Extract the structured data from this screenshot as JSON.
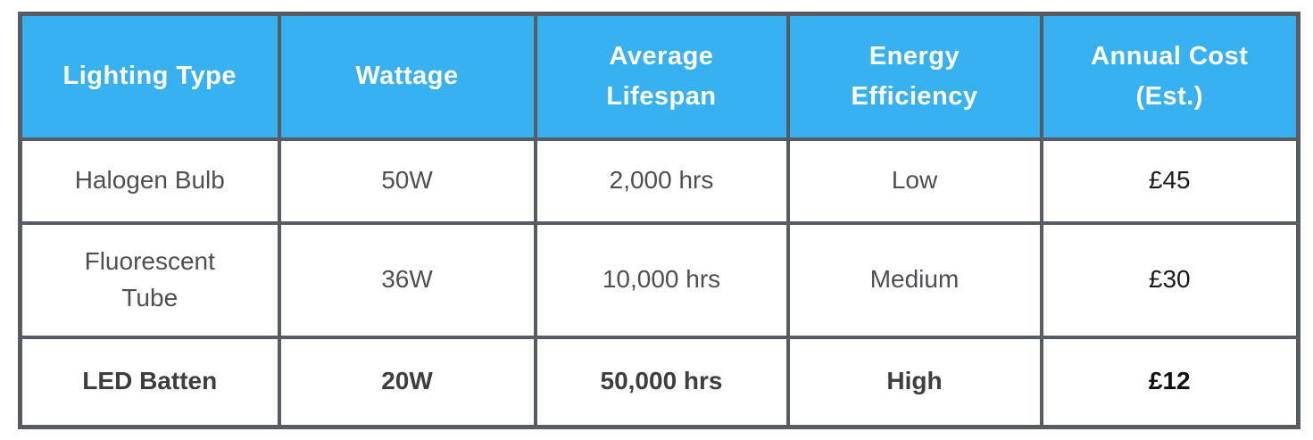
{
  "colors": {
    "header_background": "#38b1f1",
    "header_text": "#ffffff",
    "border": "#585b61",
    "body_text": "#4d4f53",
    "emphasis_text": "#3c3e42",
    "cost_text": "#111111",
    "page_background": "#ffffff"
  },
  "table": {
    "columns": [
      "Lighting Type",
      "Wattage",
      "Average Lifespan",
      "Energy Efficiency",
      "Annual Cost (Est.)"
    ],
    "rows": [
      {
        "lighting_type": "Halogen Bulb",
        "wattage": "50W",
        "average_lifespan": "2,000 hrs",
        "energy_efficiency": "Low",
        "annual_cost": "£45",
        "emphasized": false
      },
      {
        "lighting_type": "Fluorescent Tube",
        "wattage": "36W",
        "average_lifespan": "10,000 hrs",
        "energy_efficiency": "Medium",
        "annual_cost": "£30",
        "emphasized": false
      },
      {
        "lighting_type": "LED Batten",
        "wattage": "20W",
        "average_lifespan": "50,000 hrs",
        "energy_efficiency": "High",
        "annual_cost": "£12",
        "emphasized": true
      }
    ]
  }
}
